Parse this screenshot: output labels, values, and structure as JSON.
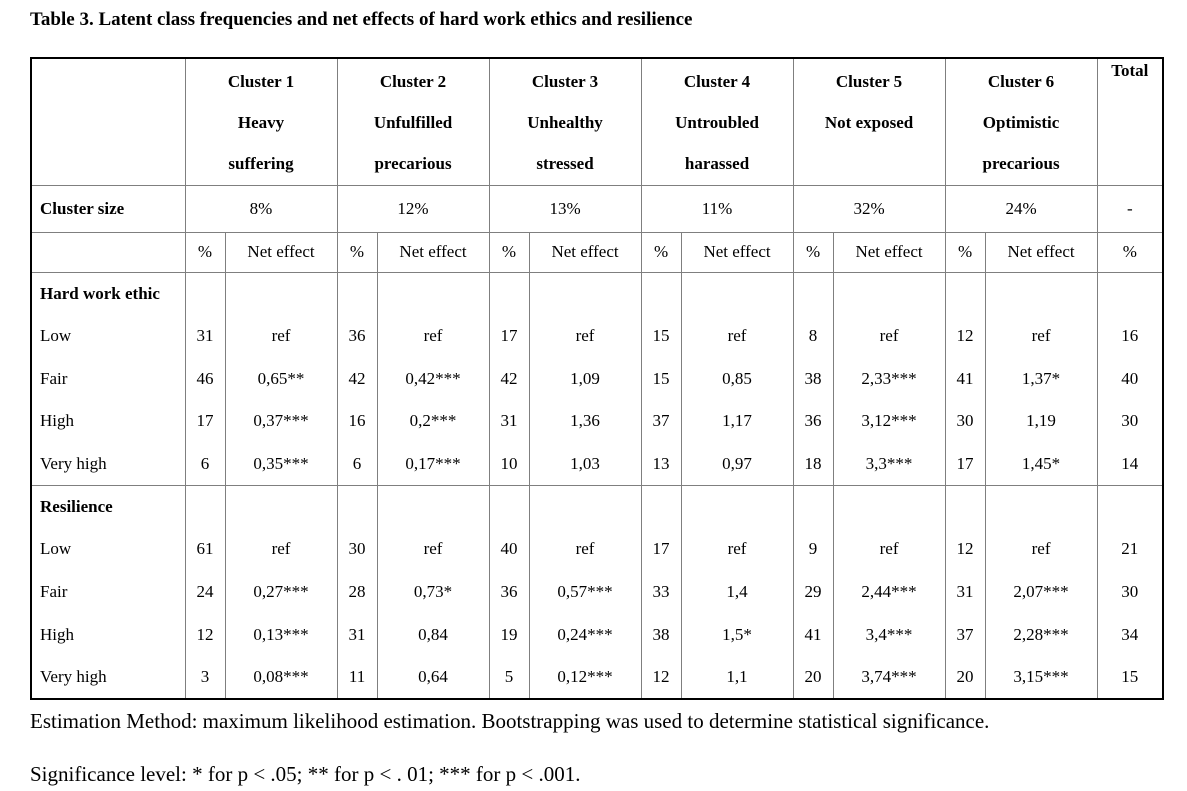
{
  "page": {
    "title": "Table 3. Latent class frequencies and net effects of hard work ethics and resilience",
    "notes": [
      "Estimation Method: maximum likelihood estimation. Bootstrapping was used to determine statistical significance.",
      "Significance level: * for p < .05; ** for p < . 01; *** for p < .001."
    ]
  },
  "table": {
    "corner_label": "",
    "total_header": "Total",
    "cluster_size_label": "Cluster size",
    "total_size": "-",
    "subheaders": {
      "pct": "%",
      "net": "Net effect",
      "total_pct": "%"
    },
    "clusters": [
      {
        "id": "Cluster 1",
        "name_lines": [
          "Heavy",
          "suffering"
        ],
        "size": "8%"
      },
      {
        "id": "Cluster 2",
        "name_lines": [
          "Unfulfilled",
          "precarious"
        ],
        "size": "12%"
      },
      {
        "id": "Cluster 3",
        "name_lines": [
          "Unhealthy",
          "stressed"
        ],
        "size": "13%"
      },
      {
        "id": "Cluster 4",
        "name_lines": [
          "Untroubled",
          "harassed"
        ],
        "size": "11%"
      },
      {
        "id": "Cluster 5",
        "name_lines": [
          "Not exposed"
        ],
        "size": "32%"
      },
      {
        "id": "Cluster 6",
        "name_lines": [
          "Optimistic",
          "precarious"
        ],
        "size": "24%"
      }
    ],
    "sections": [
      {
        "label": "Hard work ethic",
        "rows": [
          {
            "label": "Low",
            "cells": [
              [
                "31",
                "ref"
              ],
              [
                "36",
                "ref"
              ],
              [
                "17",
                "ref"
              ],
              [
                "15",
                "ref"
              ],
              [
                "8",
                "ref"
              ],
              [
                "12",
                "ref"
              ]
            ],
            "total": "16"
          },
          {
            "label": "Fair",
            "cells": [
              [
                "46",
                "0,65**"
              ],
              [
                "42",
                "0,42***"
              ],
              [
                "42",
                "1,09"
              ],
              [
                "15",
                "0,85"
              ],
              [
                "38",
                "2,33***"
              ],
              [
                "41",
                "1,37*"
              ]
            ],
            "total": "40"
          },
          {
            "label": "High",
            "cells": [
              [
                "17",
                "0,37***"
              ],
              [
                "16",
                "0,2***"
              ],
              [
                "31",
                "1,36"
              ],
              [
                "37",
                "1,17"
              ],
              [
                "36",
                "3,12***"
              ],
              [
                "30",
                "1,19"
              ]
            ],
            "total": "30"
          },
          {
            "label": "Very high",
            "cells": [
              [
                "6",
                "0,35***"
              ],
              [
                "6",
                "0,17***"
              ],
              [
                "10",
                "1,03"
              ],
              [
                "13",
                "0,97"
              ],
              [
                "18",
                "3,3***"
              ],
              [
                "17",
                "1,45*"
              ]
            ],
            "total": "14"
          }
        ]
      },
      {
        "label": "Resilience",
        "rows": [
          {
            "label": "Low",
            "cells": [
              [
                "61",
                "ref"
              ],
              [
                "30",
                "ref"
              ],
              [
                "40",
                "ref"
              ],
              [
                "17",
                "ref"
              ],
              [
                "9",
                "ref"
              ],
              [
                "12",
                "ref"
              ]
            ],
            "total": "21"
          },
          {
            "label": "Fair",
            "cells": [
              [
                "24",
                "0,27***"
              ],
              [
                "28",
                "0,73*"
              ],
              [
                "36",
                "0,57***"
              ],
              [
                "33",
                "1,4"
              ],
              [
                "29",
                "2,44***"
              ],
              [
                "31",
                "2,07***"
              ]
            ],
            "total": "30"
          },
          {
            "label": "High",
            "cells": [
              [
                "12",
                "0,13***"
              ],
              [
                "31",
                "0,84"
              ],
              [
                "19",
                "0,24***"
              ],
              [
                "38",
                "1,5*"
              ],
              [
                "41",
                "3,4***"
              ],
              [
                "37",
                "2,28***"
              ]
            ],
            "total": "34"
          },
          {
            "label": "Very high",
            "cells": [
              [
                "3",
                "0,08***"
              ],
              [
                "11",
                "0,64"
              ],
              [
                "5",
                "0,12***"
              ],
              [
                "12",
                "1,1"
              ],
              [
                "20",
                "3,74***"
              ],
              [
                "20",
                "3,15***"
              ]
            ],
            "total": "15"
          }
        ]
      }
    ],
    "layout": {
      "label_col_width": 154,
      "pct_col_width": 40,
      "net_col_width": 112,
      "total_col_width": 66
    }
  }
}
